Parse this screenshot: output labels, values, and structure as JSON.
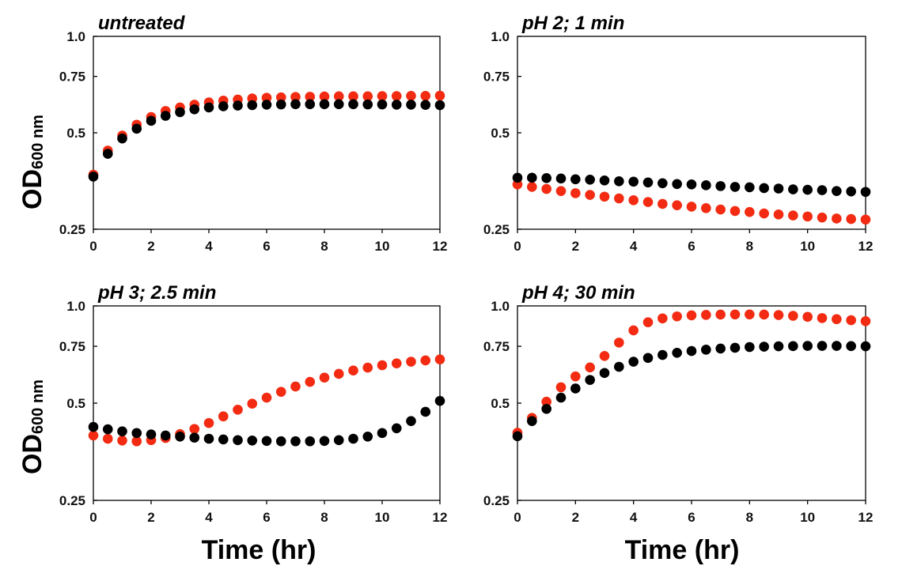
{
  "figure": {
    "y_axis_label_main": "OD",
    "y_axis_label_sub": "600 nm",
    "x_axis_label": "Time (hr)",
    "series_colors": {
      "red": "#f22b12",
      "black": "#000000"
    }
  },
  "chart_data": [
    {
      "type": "scatter",
      "title": "untreated",
      "xlabel": "Time (hr)",
      "ylabel": "OD600 nm",
      "yscale": "log",
      "xlim": [
        0,
        12
      ],
      "ylim": [
        0.25,
        1.0
      ],
      "xticks": [
        0,
        2,
        4,
        6,
        8,
        10,
        12
      ],
      "yticks": [
        0.25,
        0.5,
        0.75,
        1.0
      ],
      "yticklabels": [
        "0.25",
        "0.5",
        "0.75",
        "1.0"
      ],
      "x": [
        0,
        0.5,
        1,
        1.5,
        2,
        2.5,
        3,
        3.5,
        4,
        4.5,
        5,
        5.5,
        6,
        6.5,
        7,
        7.5,
        8,
        8.5,
        9,
        9.5,
        10,
        10.5,
        11,
        11.5,
        12
      ],
      "series": [
        {
          "name": "red",
          "color": "#f22b12",
          "values": [
            0.37,
            0.44,
            0.49,
            0.53,
            0.56,
            0.585,
            0.6,
            0.612,
            0.622,
            0.63,
            0.635,
            0.64,
            0.643,
            0.645,
            0.647,
            0.648,
            0.649,
            0.65,
            0.65,
            0.65,
            0.651,
            0.651,
            0.652,
            0.652,
            0.653
          ]
        },
        {
          "name": "black",
          "color": "#000000",
          "values": [
            0.365,
            0.43,
            0.48,
            0.515,
            0.545,
            0.565,
            0.58,
            0.592,
            0.6,
            0.605,
            0.608,
            0.61,
            0.612,
            0.613,
            0.614,
            0.614,
            0.614,
            0.614,
            0.614,
            0.613,
            0.613,
            0.612,
            0.612,
            0.611,
            0.61
          ]
        }
      ]
    },
    {
      "type": "scatter",
      "title": "pH 2; 1 min",
      "xlabel": "Time (hr)",
      "ylabel": "OD600 nm",
      "yscale": "log",
      "xlim": [
        0,
        12
      ],
      "ylim": [
        0.25,
        1.0
      ],
      "xticks": [
        0,
        2,
        4,
        6,
        8,
        10,
        12
      ],
      "yticks": [
        0.25,
        0.5,
        0.75,
        1.0
      ],
      "yticklabels": [
        "0.25",
        "0.5",
        "0.75",
        "1.0"
      ],
      "x": [
        0,
        0.5,
        1,
        1.5,
        2,
        2.5,
        3,
        3.5,
        4,
        4.5,
        5,
        5.5,
        6,
        6.5,
        7,
        7.5,
        8,
        8.5,
        9,
        9.5,
        10,
        10.5,
        11,
        11.5,
        12
      ],
      "series": [
        {
          "name": "red",
          "color": "#f22b12",
          "values": [
            0.345,
            0.339,
            0.334,
            0.329,
            0.324,
            0.32,
            0.316,
            0.312,
            0.308,
            0.304,
            0.3,
            0.297,
            0.294,
            0.291,
            0.288,
            0.285,
            0.283,
            0.28,
            0.278,
            0.276,
            0.274,
            0.272,
            0.27,
            0.269,
            0.268
          ]
        },
        {
          "name": "black",
          "color": "#000000",
          "values": [
            0.362,
            0.362,
            0.361,
            0.36,
            0.358,
            0.357,
            0.355,
            0.353,
            0.352,
            0.35,
            0.348,
            0.346,
            0.345,
            0.343,
            0.341,
            0.339,
            0.338,
            0.336,
            0.335,
            0.333,
            0.332,
            0.331,
            0.329,
            0.328,
            0.327
          ]
        }
      ]
    },
    {
      "type": "scatter",
      "title": "pH 3; 2.5 min",
      "xlabel": "Time (hr)",
      "ylabel": "OD600 nm",
      "yscale": "log",
      "xlim": [
        0,
        12
      ],
      "ylim": [
        0.25,
        1.0
      ],
      "xticks": [
        0,
        2,
        4,
        6,
        8,
        10,
        12
      ],
      "yticks": [
        0.25,
        0.5,
        0.75,
        1.0
      ],
      "yticklabels": [
        "0.25",
        "0.5",
        "0.75",
        "1.0"
      ],
      "x": [
        0,
        0.5,
        1,
        1.5,
        2,
        2.5,
        3,
        3.5,
        4,
        4.5,
        5,
        5.5,
        6,
        6.5,
        7,
        7.5,
        8,
        8.5,
        9,
        9.5,
        10,
        10.5,
        11,
        11.5,
        12
      ],
      "series": [
        {
          "name": "red",
          "color": "#f22b12",
          "values": [
            0.397,
            0.388,
            0.383,
            0.381,
            0.384,
            0.39,
            0.401,
            0.416,
            0.434,
            0.455,
            0.477,
            0.498,
            0.52,
            0.542,
            0.563,
            0.582,
            0.6,
            0.616,
            0.631,
            0.644,
            0.655,
            0.664,
            0.672,
            0.678,
            0.683
          ]
        },
        {
          "name": "black",
          "color": "#000000",
          "values": [
            0.422,
            0.415,
            0.409,
            0.404,
            0.4,
            0.397,
            0.394,
            0.391,
            0.388,
            0.386,
            0.384,
            0.383,
            0.382,
            0.381,
            0.381,
            0.381,
            0.382,
            0.384,
            0.388,
            0.394,
            0.404,
            0.418,
            0.44,
            0.47,
            0.508
          ]
        }
      ]
    },
    {
      "type": "scatter",
      "title": "pH 4; 30 min",
      "xlabel": "Time (hr)",
      "ylabel": "OD600 nm",
      "yscale": "log",
      "xlim": [
        0,
        12
      ],
      "ylim": [
        0.25,
        1.0
      ],
      "xticks": [
        0,
        2,
        4,
        6,
        8,
        10,
        12
      ],
      "yticks": [
        0.25,
        0.5,
        0.75,
        1.0
      ],
      "yticklabels": [
        "0.25",
        "0.5",
        "0.75",
        "1.0"
      ],
      "x": [
        0,
        0.5,
        1,
        1.5,
        2,
        2.5,
        3,
        3.5,
        4,
        4.5,
        5,
        5.5,
        6,
        6.5,
        7,
        7.5,
        8,
        8.5,
        9,
        9.5,
        10,
        10.5,
        11,
        11.5,
        12
      ],
      "series": [
        {
          "name": "red",
          "color": "#f22b12",
          "values": [
            0.405,
            0.45,
            0.505,
            0.56,
            0.605,
            0.645,
            0.7,
            0.77,
            0.84,
            0.89,
            0.915,
            0.928,
            0.935,
            0.938,
            0.94,
            0.941,
            0.941,
            0.94,
            0.937,
            0.932,
            0.925,
            0.917,
            0.91,
            0.903,
            0.897
          ]
        },
        {
          "name": "black",
          "color": "#000000",
          "values": [
            0.395,
            0.44,
            0.48,
            0.52,
            0.555,
            0.59,
            0.62,
            0.648,
            0.672,
            0.69,
            0.705,
            0.716,
            0.725,
            0.732,
            0.738,
            0.742,
            0.746,
            0.748,
            0.75,
            0.751,
            0.752,
            0.752,
            0.752,
            0.751,
            0.75
          ]
        }
      ]
    }
  ]
}
